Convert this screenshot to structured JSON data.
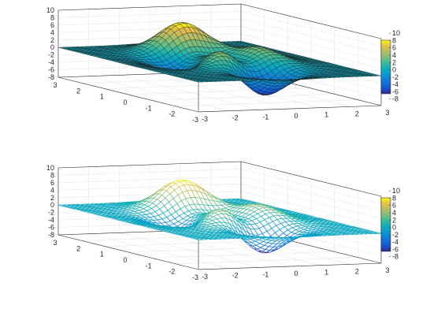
{
  "chart_data": [
    {
      "type": "surface",
      "style": "surf",
      "title": "",
      "xlabel": "",
      "ylabel": "",
      "zlabel": "",
      "xlim": [
        -3,
        3
      ],
      "ylim": [
        -3,
        3
      ],
      "zlim": [
        -8,
        10
      ],
      "function": "peaks",
      "grid_n": 41,
      "grid": true,
      "colormap": "parula",
      "x_ticks": [
        "-3",
        "-2",
        "-1",
        "0",
        "1",
        "2",
        "3"
      ],
      "y_ticks": [
        "-3",
        "-2",
        "-1",
        "0",
        "1",
        "2",
        "3"
      ],
      "z_ticks": [
        "-8",
        "-6",
        "-4",
        "-2",
        "0",
        "2",
        "4",
        "6",
        "8",
        "10"
      ],
      "colorbar_ticks": [
        "-8",
        "-6",
        "-4",
        "-2",
        "0",
        "2",
        "4",
        "6",
        "8",
        "10"
      ]
    },
    {
      "type": "surface",
      "style": "mesh",
      "title": "",
      "xlabel": "",
      "ylabel": "",
      "zlabel": "",
      "xlim": [
        -3,
        3
      ],
      "ylim": [
        -3,
        3
      ],
      "zlim": [
        -8,
        10
      ],
      "function": "peaks",
      "grid_n": 41,
      "grid": true,
      "colormap": "parula",
      "x_ticks": [
        "-3",
        "-2",
        "-1",
        "0",
        "1",
        "2",
        "3"
      ],
      "y_ticks": [
        "-3",
        "-2",
        "-1",
        "0",
        "1",
        "2",
        "3"
      ],
      "z_ticks": [
        "-8",
        "-6",
        "-4",
        "-2",
        "0",
        "2",
        "4",
        "6",
        "8",
        "10"
      ],
      "colorbar_ticks": [
        "-8",
        "-6",
        "-4",
        "-2",
        "0",
        "2",
        "4",
        "6",
        "8",
        "10"
      ]
    }
  ]
}
